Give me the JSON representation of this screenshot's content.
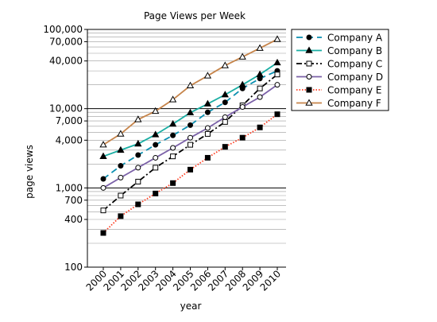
{
  "chart_data": {
    "type": "line",
    "title": "Page Views per Week",
    "xlabel": "year",
    "ylabel": "page views",
    "yscale": "log",
    "ylim": [
      100,
      100000
    ],
    "x": [
      2000,
      2001,
      2002,
      2003,
      2004,
      2005,
      2006,
      2007,
      2008,
      2009,
      2010
    ],
    "x_tick_labels": [
      "2000",
      "2001",
      "2002",
      "2003",
      "2004",
      "2005",
      "2006",
      "2007",
      "2008",
      "2009",
      "2010"
    ],
    "y_tick_labels": [
      {
        "value": 100,
        "label": "100"
      },
      {
        "value": 400,
        "label": "400"
      },
      {
        "value": 700,
        "label": "700"
      },
      {
        "value": 1000,
        "label": "1,000"
      },
      {
        "value": 4000,
        "label": "4,000"
      },
      {
        "value": 7000,
        "label": "7,000"
      },
      {
        "value": 10000,
        "label": "10,000"
      },
      {
        "value": 40000,
        "label": "40,000"
      },
      {
        "value": 70000,
        "label": "70,000"
      },
      {
        "value": 100000,
        "label": "100,000"
      }
    ],
    "grid": "horizontal",
    "legend_position": "right",
    "series": [
      {
        "name": "Company A",
        "color": "#0a8fb0",
        "dash": "dashed",
        "marker": "filled-circle",
        "values": [
          1300,
          1900,
          2600,
          3500,
          4600,
          6200,
          9000,
          12000,
          18000,
          24000,
          30000
        ]
      },
      {
        "name": "Company B",
        "color": "#19aea3",
        "dash": "solid",
        "marker": "filled-triangle",
        "values": [
          2500,
          3000,
          3600,
          4700,
          6400,
          8900,
          11500,
          15000,
          20000,
          27000,
          38000
        ]
      },
      {
        "name": "Company C",
        "color": "#000000",
        "dash": "dash-dot",
        "marker": "open-square",
        "values": [
          520,
          800,
          1200,
          1800,
          2500,
          3500,
          4800,
          6800,
          11000,
          18000,
          27000
        ]
      },
      {
        "name": "Company D",
        "color": "#7b61a8",
        "dash": "solid",
        "marker": "open-circle",
        "values": [
          1000,
          1350,
          1800,
          2400,
          3200,
          4300,
          5700,
          7800,
          10500,
          14000,
          20000
        ]
      },
      {
        "name": "Company E",
        "color": "#ff3b1f",
        "dash": "dotted",
        "marker": "filled-square",
        "values": [
          270,
          440,
          620,
          850,
          1150,
          1700,
          2400,
          3300,
          4300,
          5800,
          8500
        ]
      },
      {
        "name": "Company F",
        "color": "#c6844a",
        "dash": "solid",
        "marker": "open-triangle",
        "values": [
          3500,
          4800,
          7300,
          9300,
          13000,
          19500,
          26000,
          35000,
          45000,
          58000,
          75000
        ]
      }
    ]
  }
}
